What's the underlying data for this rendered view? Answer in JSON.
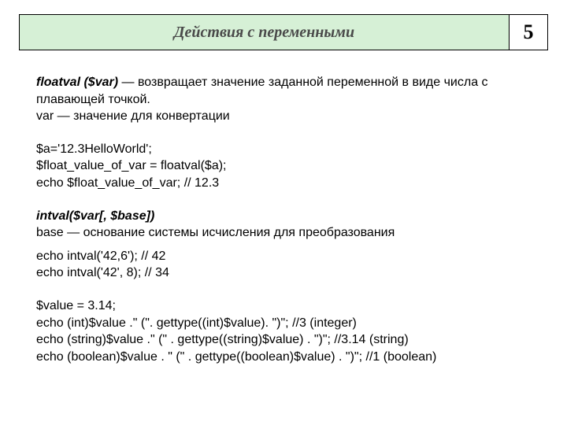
{
  "header": {
    "title": "Действия с переменными",
    "number": "5",
    "bg_color": "#d6f0d6",
    "border_color": "#000000",
    "title_color": "#4a4a4a"
  },
  "body": {
    "floatval_name": "floatval ($var)",
    "floatval_dash": " — ",
    "floatval_desc1": " возвращает значение заданной переменной в виде числа с плавающей точкой.",
    "var_line": "var — значение для конвертации",
    "code1_l1": "$a='12.3HelloWorld';",
    "code1_l2": "$float_value_of_var = floatval($a);",
    "code1_l3": "echo $float_value_of_var; // 12.3",
    "intval_name": "intval($var[, $base])",
    "intval_desc": "base — основание системы исчисления для преобразования",
    "code2_l1": "echo intval('42,6');  // 42",
    "code2_l2": "echo intval('42', 8);  // 34",
    "code3_l1": "$value = 3.14;",
    "code3_l2": "echo (int)$value .\" (\". gettype((int)$value). \")\";       //3 (integer)",
    "code3_l3": "echo (string)$value .\" (\" . gettype((string)$value) . \")\";   //3.14 (string)",
    "code3_l4": "echo (boolean)$value . \" (\" . gettype((boolean)$value) . \")\"; //1 (boolean)"
  },
  "style": {
    "body_fontsize": 16,
    "header_fontsize": 20,
    "number_fontsize": 26
  }
}
